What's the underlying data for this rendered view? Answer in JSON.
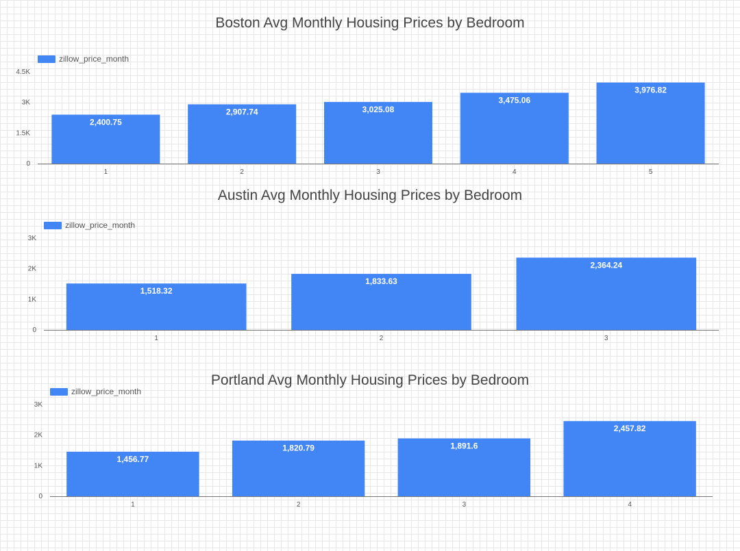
{
  "chart_data": [
    {
      "type": "bar",
      "title": "Boston Avg Monthly Housing Prices by Bedroom",
      "categories": [
        "1",
        "2",
        "3",
        "4",
        "5"
      ],
      "series": [
        {
          "name": "zillow_price_month",
          "values": [
            2400.75,
            2907.74,
            3025.08,
            3475.06,
            3976.82
          ]
        }
      ],
      "data_labels": [
        "2,400.75",
        "2,907.74",
        "3,025.08",
        "3,475.06",
        "3,976.82"
      ],
      "yticks": [
        "0",
        "1.5K",
        "3K",
        "4.5K"
      ],
      "ytick_values": [
        0,
        1500,
        3000,
        4500
      ],
      "ylim": [
        0,
        4500
      ],
      "color": "#4285f4",
      "legend": "top-left",
      "grid": false
    },
    {
      "type": "bar",
      "title": "Austin Avg Monthly Housing Prices by Bedroom",
      "categories": [
        "1",
        "2",
        "3"
      ],
      "series": [
        {
          "name": "zillow_price_month",
          "values": [
            1518.32,
            1833.63,
            2364.24
          ]
        }
      ],
      "data_labels": [
        "1,518.32",
        "1,833.63",
        "2,364.24"
      ],
      "yticks": [
        "0",
        "1K",
        "2K",
        "3K"
      ],
      "ytick_values": [
        0,
        1000,
        2000,
        3000
      ],
      "ylim": [
        0,
        3000
      ],
      "color": "#4285f4",
      "legend": "top-left",
      "grid": false
    },
    {
      "type": "bar",
      "title": "Portland Avg Monthly Housing Prices by Bedroom",
      "categories": [
        "1",
        "2",
        "3",
        "4"
      ],
      "series": [
        {
          "name": "zillow_price_month",
          "values": [
            1456.77,
            1820.79,
            1891.6,
            2457.82
          ]
        }
      ],
      "data_labels": [
        "1,456.77",
        "1,820.79",
        "1,891.6",
        "2,457.82"
      ],
      "yticks": [
        "0",
        "1K",
        "2K",
        "3K"
      ],
      "ytick_values": [
        0,
        1000,
        2000,
        3000
      ],
      "ylim": [
        0,
        3000
      ],
      "color": "#4285f4",
      "legend": "top-left",
      "grid": false
    }
  ]
}
